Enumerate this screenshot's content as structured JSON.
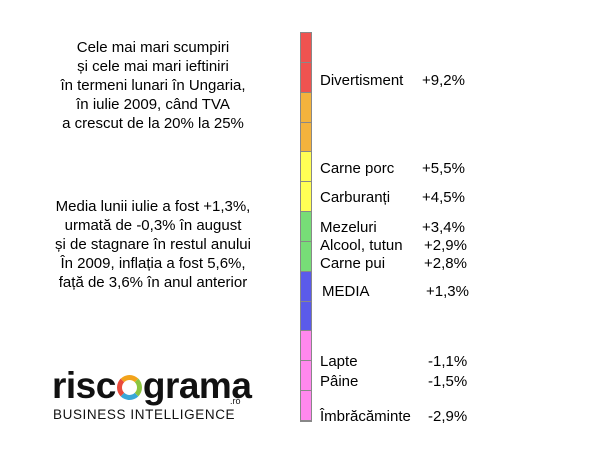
{
  "title_lines": [
    "Cele mai mari scumpiri",
    "și cele mai mari ieftiniri",
    "în termeni lunari în Ungaria,",
    "în iulie 2009, când TVA",
    "a crescut de la 20% la 25%"
  ],
  "note_lines": [
    "Media lunii iulie a fost +1,3%,",
    "urmată de -0,3% în august",
    "și de stagnare în restul anului",
    "În 2009, inflația a fost 5,6%,",
    "față de 3,6% în anul anterior"
  ],
  "logo": {
    "word_left": "risc",
    "word_right": "grama",
    "suffix": ".ro",
    "tagline": "BUSINESS INTELLIGENCE"
  },
  "chart_data": {
    "type": "bar",
    "scale_colors": [
      "#ef5350",
      "#ef5350",
      "#f3b33d",
      "#f3b33d",
      "#ffff55",
      "#ffff55",
      "#77dd77",
      "#77dd77",
      "#5b5bea",
      "#5b5bea",
      "#ff88ee",
      "#ff88ee",
      "#ff88ee"
    ],
    "categories": [
      "Divertisment",
      "Carne porc",
      "Carburanți",
      "Mezeluri",
      "Alcool, tutun",
      "Carne pui",
      "MEDIA",
      "Lapte",
      "Pâine",
      "Îmbrăcăminte"
    ],
    "values": [
      9.2,
      5.5,
      4.5,
      3.4,
      2.9,
      2.8,
      1.3,
      -1.1,
      -1.5,
      -2.9
    ],
    "value_labels": [
      "+9,2%",
      "+5,5%",
      "+4,5%",
      "+3,4%",
      "+2,9%",
      "+2,8%",
      "+1,3%",
      "-1,1%",
      "-1,5%",
      "-2,9%"
    ]
  }
}
